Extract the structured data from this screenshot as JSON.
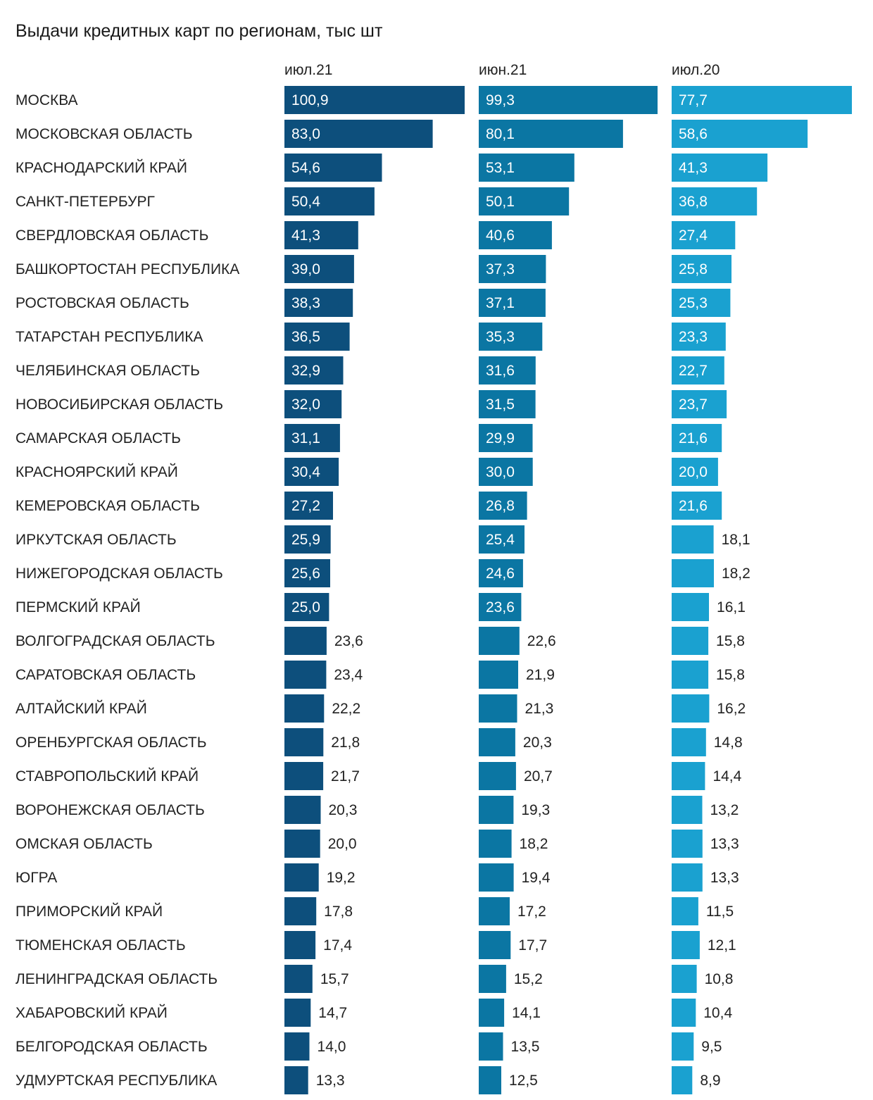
{
  "chart_data": {
    "type": "bar",
    "title": "Выдачи кредитных карт по регионам, тыс шт",
    "orientation": "horizontal",
    "categories": [
      "МОСКВА",
      "МОСКОВСКАЯ ОБЛАСТЬ",
      "КРАСНОДАРСКИЙ КРАЙ",
      "САНКТ-ПЕТЕРБУРГ",
      "СВЕРДЛОВСКАЯ ОБЛАСТЬ",
      "БАШКОРТОСТАН РЕСПУБЛИКА",
      "РОСТОВСКАЯ ОБЛАСТЬ",
      "ТАТАРСТАН РЕСПУБЛИКА",
      "ЧЕЛЯБИНСКАЯ ОБЛАСТЬ",
      "НОВОСИБИРСКАЯ ОБЛАСТЬ",
      "САМАРСКАЯ ОБЛАСТЬ",
      "КРАСНОЯРСКИЙ КРАЙ",
      "КЕМЕРОВСКАЯ ОБЛАСТЬ",
      "ИРКУТСКАЯ ОБЛАСТЬ",
      "НИЖЕГОРОДСКАЯ ОБЛАСТЬ",
      "ПЕРМСКИЙ КРАЙ",
      "ВОЛГОГРАДСКАЯ ОБЛАСТЬ",
      "САРАТОВСКАЯ ОБЛАСТЬ",
      "АЛТАЙСКИЙ КРАЙ",
      "ОРЕНБУРГСКАЯ ОБЛАСТЬ",
      "СТАВРОПОЛЬСКИЙ КРАЙ",
      "ВОРОНЕЖСКАЯ ОБЛАСТЬ",
      "ОМСКАЯ ОБЛАСТЬ",
      "ЮГРА",
      "ПРИМОРСКИЙ КРАЙ",
      "ТЮМЕНСКАЯ ОБЛАСТЬ",
      "ЛЕНИНГРАДСКАЯ ОБЛАСТЬ",
      "ХАБАРОВСКИЙ КРАЙ",
      "БЕЛГОРОДСКАЯ ОБЛАСТЬ",
      "УДМУРТСКАЯ РЕСПУБЛИКА"
    ],
    "series": [
      {
        "name": "июл.21",
        "color": "#0d4f7c",
        "values": [
          100.9,
          83.0,
          54.6,
          50.4,
          41.3,
          39.0,
          38.3,
          36.5,
          32.9,
          32.0,
          31.1,
          30.4,
          27.2,
          25.9,
          25.6,
          25.0,
          23.6,
          23.4,
          22.2,
          21.8,
          21.7,
          20.3,
          20.0,
          19.2,
          17.8,
          17.4,
          15.7,
          14.7,
          14.0,
          13.3
        ]
      },
      {
        "name": "июн.21",
        "color": "#0b76a3",
        "values": [
          99.3,
          80.1,
          53.1,
          50.1,
          40.6,
          37.3,
          37.1,
          35.3,
          31.6,
          31.5,
          29.9,
          30.0,
          26.8,
          25.4,
          24.6,
          23.6,
          22.6,
          21.9,
          21.3,
          20.3,
          20.7,
          19.3,
          18.2,
          19.4,
          17.2,
          17.7,
          15.2,
          14.1,
          13.5,
          12.5
        ]
      },
      {
        "name": "июл.20",
        "color": "#1aa1d0",
        "values": [
          77.7,
          58.6,
          41.3,
          36.8,
          27.4,
          25.8,
          25.3,
          23.3,
          22.7,
          23.7,
          21.6,
          20.0,
          21.6,
          18.1,
          18.2,
          16.1,
          15.8,
          15.8,
          16.2,
          14.8,
          14.4,
          13.2,
          13.3,
          13.3,
          11.5,
          12.1,
          10.8,
          10.4,
          9.5,
          8.9
        ]
      }
    ],
    "decimal_separator": ",",
    "grid": false,
    "legend": "column headers"
  }
}
